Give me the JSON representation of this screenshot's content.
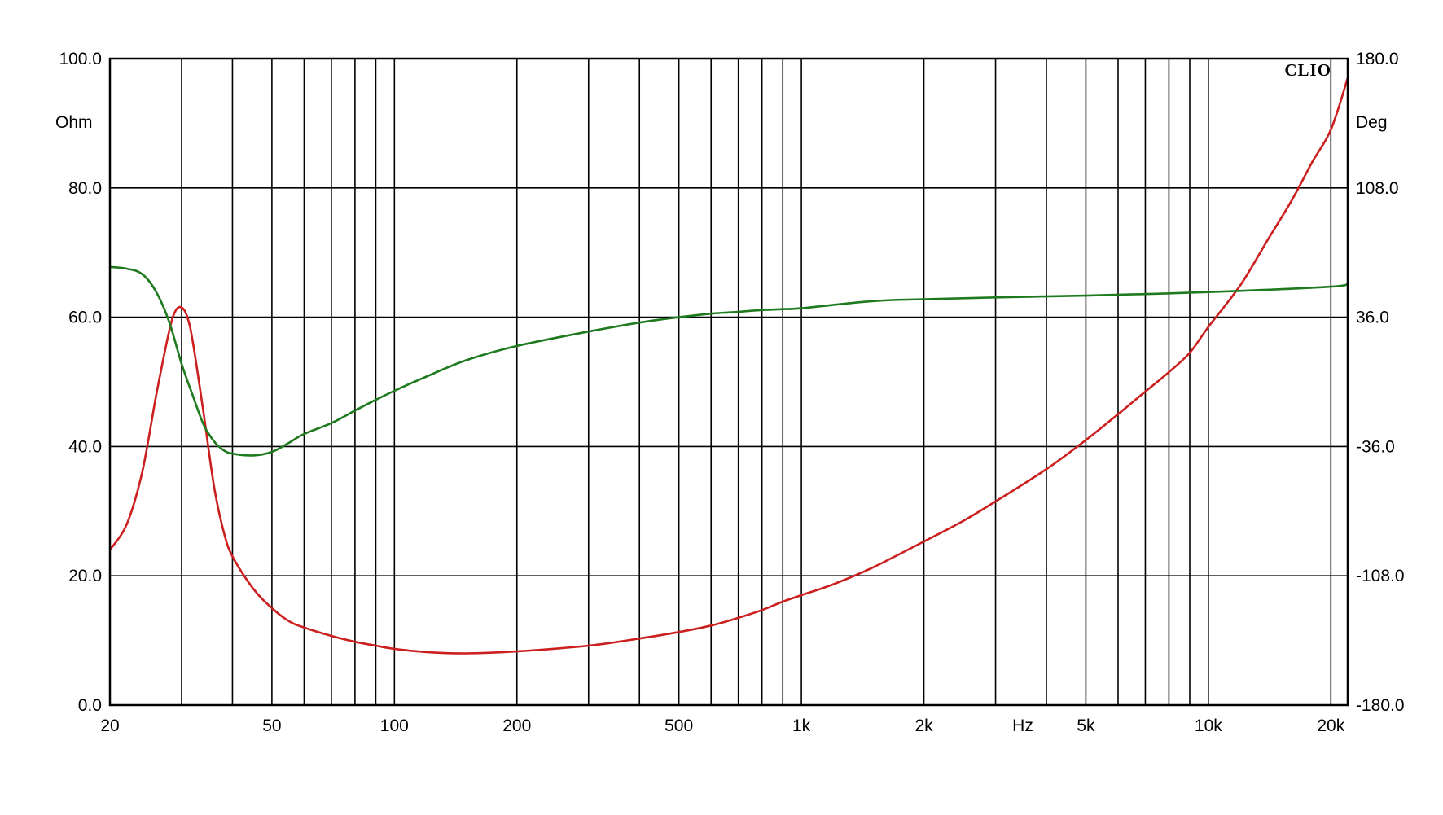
{
  "chart_data": {
    "type": "line",
    "brand": "CLIO",
    "x_unit": "Hz",
    "left_unit": "Ohm",
    "right_unit": "Deg",
    "x_scale": "log",
    "xlim": [
      20,
      22000
    ],
    "ylim_left": [
      0,
      100
    ],
    "ylim_right": [
      -180,
      180
    ],
    "grid": true,
    "colors": {
      "impedance": "#cc1f1f",
      "phase": "#1e7a1e",
      "grid": "#000000",
      "background": "#ffffff"
    },
    "x_gridlines": [
      20,
      30,
      40,
      50,
      60,
      70,
      80,
      90,
      100,
      200,
      300,
      400,
      500,
      600,
      700,
      800,
      900,
      1000,
      2000,
      3000,
      4000,
      5000,
      6000,
      7000,
      8000,
      9000,
      10000,
      20000
    ],
    "x_ticks": [
      {
        "v": 20,
        "label": "20"
      },
      {
        "v": 50,
        "label": "50"
      },
      {
        "v": 100,
        "label": "100"
      },
      {
        "v": 200,
        "label": "200"
      },
      {
        "v": 500,
        "label": "500"
      },
      {
        "v": 1000,
        "label": "1k"
      },
      {
        "v": 2000,
        "label": "2k"
      },
      {
        "v": 3500,
        "label": "Hz"
      },
      {
        "v": 5000,
        "label": "5k"
      },
      {
        "v": 10000,
        "label": "10k"
      },
      {
        "v": 20000,
        "label": "20k"
      }
    ],
    "y_ticks_left": [
      {
        "v": 0,
        "label": "0.0"
      },
      {
        "v": 20,
        "label": "20.0"
      },
      {
        "v": 40,
        "label": "40.0"
      },
      {
        "v": 60,
        "label": "60.0"
      },
      {
        "v": 80,
        "label": "80.0"
      },
      {
        "v": 100,
        "label": "100.0"
      }
    ],
    "y_ticks_right": [
      {
        "v": -180,
        "label": "-180.0"
      },
      {
        "v": -108,
        "label": "-108.0"
      },
      {
        "v": -36,
        "label": "-36.0"
      },
      {
        "v": 36,
        "label": "36.0"
      },
      {
        "v": 108,
        "label": "108.0"
      },
      {
        "v": 180,
        "label": "180.0"
      }
    ],
    "series": [
      {
        "axis": "left",
        "color": "#cc1f1f",
        "points": [
          [
            20,
            24
          ],
          [
            22,
            28
          ],
          [
            24,
            36
          ],
          [
            26,
            48
          ],
          [
            28,
            58
          ],
          [
            29,
            61
          ],
          [
            30,
            61.5
          ],
          [
            31,
            60
          ],
          [
            32,
            56
          ],
          [
            34,
            45
          ],
          [
            36,
            34
          ],
          [
            38,
            27
          ],
          [
            40,
            23
          ],
          [
            45,
            18
          ],
          [
            50,
            15
          ],
          [
            55,
            13
          ],
          [
            60,
            12
          ],
          [
            70,
            10.7
          ],
          [
            80,
            9.8
          ],
          [
            90,
            9.2
          ],
          [
            100,
            8.7
          ],
          [
            120,
            8.2
          ],
          [
            150,
            8.0
          ],
          [
            200,
            8.3
          ],
          [
            300,
            9.2
          ],
          [
            400,
            10.3
          ],
          [
            500,
            11.3
          ],
          [
            600,
            12.3
          ],
          [
            700,
            13.5
          ],
          [
            800,
            14.7
          ],
          [
            900,
            16.0
          ],
          [
            1000,
            17.0
          ],
          [
            1200,
            18.7
          ],
          [
            1500,
            21.3
          ],
          [
            2000,
            25.3
          ],
          [
            2500,
            28.5
          ],
          [
            3000,
            31.5
          ],
          [
            4000,
            36.5
          ],
          [
            5000,
            41.0
          ],
          [
            6000,
            45.0
          ],
          [
            7000,
            48.5
          ],
          [
            8000,
            51.5
          ],
          [
            9000,
            54.5
          ],
          [
            10000,
            58.5
          ],
          [
            12000,
            65.0
          ],
          [
            14000,
            72.0
          ],
          [
            16000,
            78.0
          ],
          [
            18000,
            84.0
          ],
          [
            20000,
            89.0
          ],
          [
            22000,
            97.0
          ]
        ]
      },
      {
        "axis": "right",
        "color": "#1e7a1e",
        "points": [
          [
            20,
            64
          ],
          [
            22,
            63
          ],
          [
            24,
            60
          ],
          [
            26,
            50
          ],
          [
            28,
            33
          ],
          [
            30,
            10
          ],
          [
            32,
            -8
          ],
          [
            34,
            -24
          ],
          [
            36,
            -33
          ],
          [
            38,
            -38
          ],
          [
            40,
            -40
          ],
          [
            45,
            -41
          ],
          [
            50,
            -39
          ],
          [
            55,
            -34
          ],
          [
            60,
            -29
          ],
          [
            70,
            -23
          ],
          [
            80,
            -16
          ],
          [
            90,
            -10
          ],
          [
            100,
            -5
          ],
          [
            120,
            3
          ],
          [
            150,
            12
          ],
          [
            200,
            20
          ],
          [
            300,
            28
          ],
          [
            400,
            33
          ],
          [
            500,
            36
          ],
          [
            600,
            38
          ],
          [
            700,
            39
          ],
          [
            800,
            40
          ],
          [
            900,
            40.5
          ],
          [
            1000,
            41
          ],
          [
            1500,
            45
          ],
          [
            2000,
            46
          ],
          [
            3000,
            47
          ],
          [
            5000,
            48
          ],
          [
            10000,
            50
          ],
          [
            20000,
            53
          ],
          [
            22000,
            55
          ]
        ]
      }
    ]
  }
}
